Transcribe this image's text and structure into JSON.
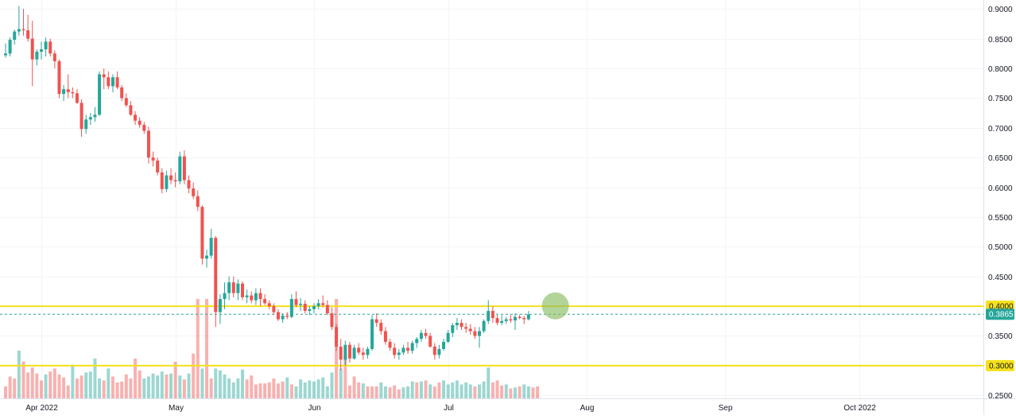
{
  "chart_data": {
    "type": "candlestick",
    "title": "",
    "xlabel": "",
    "ylabel": "",
    "ylim": [
      0.245,
      0.915
    ],
    "y_ticks": [
      "0.9000",
      "0.8500",
      "0.8000",
      "0.7500",
      "0.7000",
      "0.6500",
      "0.6000",
      "0.5500",
      "0.5000",
      "0.4500",
      "0.4000",
      "0.3500",
      "0.3000",
      "0.2500"
    ],
    "x_ticks": [
      {
        "label": "Apr 2022",
        "bar": 8
      },
      {
        "label": "May",
        "bar": 38
      },
      {
        "label": "Jun",
        "bar": 69
      },
      {
        "label": "Jul",
        "bar": 99
      },
      {
        "label": "Aug",
        "bar": 130
      },
      {
        "label": "Sep",
        "bar": 161
      },
      {
        "label": "Oct 2022",
        "bar": 191
      }
    ],
    "total_bar_slots": 220,
    "ohlc": [
      [
        0.822,
        0.842,
        0.818,
        0.825
      ],
      [
        0.825,
        0.852,
        0.82,
        0.848
      ],
      [
        0.848,
        0.865,
        0.84,
        0.862
      ],
      [
        0.862,
        0.905,
        0.855,
        0.866
      ],
      [
        0.866,
        0.9,
        0.855,
        0.864
      ],
      [
        0.864,
        0.89,
        0.845,
        0.85
      ],
      [
        0.85,
        0.88,
        0.77,
        0.815
      ],
      [
        0.815,
        0.832,
        0.805,
        0.828
      ],
      [
        0.828,
        0.845,
        0.815,
        0.832
      ],
      [
        0.832,
        0.852,
        0.82,
        0.845
      ],
      [
        0.845,
        0.85,
        0.82,
        0.825
      ],
      [
        0.825,
        0.83,
        0.8,
        0.812
      ],
      [
        0.812,
        0.815,
        0.75,
        0.757
      ],
      [
        0.757,
        0.772,
        0.745,
        0.765
      ],
      [
        0.765,
        0.79,
        0.75,
        0.76
      ],
      [
        0.76,
        0.768,
        0.75,
        0.758
      ],
      [
        0.758,
        0.765,
        0.74,
        0.742
      ],
      [
        0.742,
        0.748,
        0.685,
        0.698
      ],
      [
        0.698,
        0.722,
        0.69,
        0.714
      ],
      [
        0.714,
        0.725,
        0.705,
        0.718
      ],
      [
        0.718,
        0.735,
        0.71,
        0.722
      ],
      [
        0.722,
        0.795,
        0.72,
        0.79
      ],
      [
        0.79,
        0.8,
        0.765,
        0.785
      ],
      [
        0.785,
        0.795,
        0.765,
        0.77
      ],
      [
        0.77,
        0.79,
        0.76,
        0.785
      ],
      [
        0.785,
        0.795,
        0.765,
        0.768
      ],
      [
        0.768,
        0.772,
        0.745,
        0.75
      ],
      [
        0.75,
        0.758,
        0.735,
        0.738
      ],
      [
        0.738,
        0.745,
        0.72,
        0.722
      ],
      [
        0.722,
        0.728,
        0.705,
        0.712
      ],
      [
        0.712,
        0.718,
        0.7,
        0.705
      ],
      [
        0.705,
        0.71,
        0.69,
        0.695
      ],
      [
        0.695,
        0.702,
        0.64,
        0.65
      ],
      [
        0.65,
        0.66,
        0.635,
        0.645
      ],
      [
        0.645,
        0.65,
        0.62,
        0.625
      ],
      [
        0.625,
        0.632,
        0.59,
        0.597
      ],
      [
        0.597,
        0.628,
        0.592,
        0.62
      ],
      [
        0.62,
        0.632,
        0.605,
        0.612
      ],
      [
        0.612,
        0.625,
        0.6,
        0.61
      ],
      [
        0.61,
        0.66,
        0.605,
        0.652
      ],
      [
        0.652,
        0.662,
        0.605,
        0.612
      ],
      [
        0.612,
        0.62,
        0.59,
        0.598
      ],
      [
        0.598,
        0.608,
        0.58,
        0.585
      ],
      [
        0.585,
        0.595,
        0.56,
        0.567
      ],
      [
        0.567,
        0.57,
        0.47,
        0.48
      ],
      [
        0.48,
        0.495,
        0.465,
        0.485
      ],
      [
        0.485,
        0.53,
        0.48,
        0.515
      ],
      [
        0.515,
        0.518,
        0.365,
        0.39
      ],
      [
        0.39,
        0.42,
        0.37,
        0.412
      ],
      [
        0.412,
        0.44,
        0.395,
        0.422
      ],
      [
        0.422,
        0.45,
        0.41,
        0.44
      ],
      [
        0.44,
        0.45,
        0.415,
        0.422
      ],
      [
        0.422,
        0.445,
        0.41,
        0.438
      ],
      [
        0.438,
        0.442,
        0.41,
        0.415
      ],
      [
        0.415,
        0.428,
        0.405,
        0.418
      ],
      [
        0.418,
        0.425,
        0.405,
        0.41
      ],
      [
        0.41,
        0.43,
        0.402,
        0.422
      ],
      [
        0.422,
        0.43,
        0.4,
        0.412
      ],
      [
        0.412,
        0.42,
        0.402,
        0.405
      ],
      [
        0.405,
        0.41,
        0.395,
        0.4
      ],
      [
        0.4,
        0.405,
        0.385,
        0.39
      ],
      [
        0.39,
        0.395,
        0.375,
        0.378
      ],
      [
        0.378,
        0.388,
        0.372,
        0.384
      ],
      [
        0.384,
        0.39,
        0.378,
        0.382
      ],
      [
        0.382,
        0.42,
        0.38,
        0.412
      ],
      [
        0.412,
        0.425,
        0.398,
        0.402
      ],
      [
        0.402,
        0.414,
        0.392,
        0.404
      ],
      [
        0.404,
        0.41,
        0.388,
        0.392
      ],
      [
        0.392,
        0.4,
        0.385,
        0.395
      ],
      [
        0.395,
        0.405,
        0.388,
        0.4
      ],
      [
        0.4,
        0.412,
        0.395,
        0.405
      ],
      [
        0.405,
        0.418,
        0.398,
        0.402
      ],
      [
        0.402,
        0.41,
        0.385,
        0.388
      ],
      [
        0.388,
        0.398,
        0.36,
        0.365
      ],
      [
        0.365,
        0.37,
        0.325,
        0.332
      ],
      [
        0.332,
        0.345,
        0.292,
        0.31
      ],
      [
        0.31,
        0.342,
        0.3,
        0.335
      ],
      [
        0.335,
        0.34,
        0.305,
        0.312
      ],
      [
        0.312,
        0.335,
        0.31,
        0.33
      ],
      [
        0.33,
        0.338,
        0.318,
        0.322
      ],
      [
        0.322,
        0.33,
        0.31,
        0.318
      ],
      [
        0.318,
        0.332,
        0.312,
        0.328
      ],
      [
        0.328,
        0.385,
        0.325,
        0.378
      ],
      [
        0.378,
        0.388,
        0.365,
        0.372
      ],
      [
        0.372,
        0.378,
        0.352,
        0.358
      ],
      [
        0.358,
        0.365,
        0.335,
        0.34
      ],
      [
        0.34,
        0.345,
        0.325,
        0.33
      ],
      [
        0.33,
        0.338,
        0.312,
        0.318
      ],
      [
        0.318,
        0.328,
        0.31,
        0.322
      ],
      [
        0.322,
        0.335,
        0.318,
        0.33
      ],
      [
        0.33,
        0.34,
        0.32,
        0.325
      ],
      [
        0.325,
        0.342,
        0.32,
        0.338
      ],
      [
        0.338,
        0.348,
        0.33,
        0.345
      ],
      [
        0.345,
        0.36,
        0.34,
        0.355
      ],
      [
        0.355,
        0.362,
        0.345,
        0.35
      ],
      [
        0.35,
        0.355,
        0.33,
        0.332
      ],
      [
        0.332,
        0.338,
        0.31,
        0.318
      ],
      [
        0.318,
        0.335,
        0.312,
        0.328
      ],
      [
        0.328,
        0.345,
        0.325,
        0.34
      ],
      [
        0.34,
        0.36,
        0.338,
        0.355
      ],
      [
        0.355,
        0.372,
        0.348,
        0.368
      ],
      [
        0.368,
        0.38,
        0.36,
        0.372
      ],
      [
        0.372,
        0.378,
        0.36,
        0.365
      ],
      [
        0.365,
        0.372,
        0.355,
        0.362
      ],
      [
        0.362,
        0.37,
        0.352,
        0.358
      ],
      [
        0.358,
        0.365,
        0.345,
        0.35
      ],
      [
        0.35,
        0.365,
        0.33,
        0.358
      ],
      [
        0.358,
        0.378,
        0.355,
        0.375
      ],
      [
        0.375,
        0.41,
        0.37,
        0.392
      ],
      [
        0.392,
        0.4,
        0.372,
        0.38
      ],
      [
        0.38,
        0.385,
        0.368,
        0.372
      ],
      [
        0.372,
        0.385,
        0.368,
        0.375
      ],
      [
        0.375,
        0.382,
        0.37,
        0.378
      ],
      [
        0.378,
        0.385,
        0.372,
        0.376
      ],
      [
        0.376,
        0.388,
        0.36,
        0.382
      ],
      [
        0.382,
        0.386,
        0.378,
        0.38
      ],
      [
        0.38,
        0.384,
        0.37,
        0.378
      ],
      [
        0.378,
        0.392,
        0.376,
        0.386
      ]
    ],
    "volume": [
      [
        12,
        0
      ],
      [
        22,
        0
      ],
      [
        20,
        0
      ],
      [
        48,
        1
      ],
      [
        37,
        0
      ],
      [
        26,
        0
      ],
      [
        31,
        0
      ],
      [
        25,
        0
      ],
      [
        18,
        0
      ],
      [
        24,
        1
      ],
      [
        27,
        0
      ],
      [
        30,
        0
      ],
      [
        24,
        0
      ],
      [
        21,
        0
      ],
      [
        13,
        0
      ],
      [
        34,
        1
      ],
      [
        20,
        0
      ],
      [
        23,
        0
      ],
      [
        26,
        1
      ],
      [
        27,
        1
      ],
      [
        40,
        1
      ],
      [
        20,
        1
      ],
      [
        18,
        0
      ],
      [
        30,
        1
      ],
      [
        22,
        0
      ],
      [
        16,
        0
      ],
      [
        17,
        0
      ],
      [
        24,
        0
      ],
      [
        20,
        0
      ],
      [
        40,
        0
      ],
      [
        28,
        0
      ],
      [
        20,
        1
      ],
      [
        22,
        1
      ],
      [
        25,
        1
      ],
      [
        23,
        1
      ],
      [
        27,
        1
      ],
      [
        24,
        0
      ],
      [
        25,
        1
      ],
      [
        37,
        0
      ],
      [
        23,
        1
      ],
      [
        19,
        0
      ],
      [
        25,
        1
      ],
      [
        45,
        0
      ],
      [
        100,
        0
      ],
      [
        30,
        1
      ],
      [
        100,
        0
      ],
      [
        20,
        0
      ],
      [
        30,
        1
      ],
      [
        28,
        1
      ],
      [
        24,
        1
      ],
      [
        20,
        1
      ],
      [
        16,
        1
      ],
      [
        20,
        1
      ],
      [
        29,
        1
      ],
      [
        19,
        0
      ],
      [
        23,
        0
      ],
      [
        14,
        0
      ],
      [
        15,
        0
      ],
      [
        15,
        0
      ],
      [
        16,
        0
      ],
      [
        20,
        0
      ],
      [
        15,
        0
      ],
      [
        17,
        0
      ],
      [
        21,
        1
      ],
      [
        14,
        0
      ],
      [
        12,
        1
      ],
      [
        19,
        1
      ],
      [
        16,
        1
      ],
      [
        18,
        1
      ],
      [
        17,
        1
      ],
      [
        19,
        1
      ],
      [
        21,
        1
      ],
      [
        12,
        1
      ],
      [
        26,
        1
      ],
      [
        100,
        0
      ],
      [
        30,
        1
      ],
      [
        45,
        0
      ],
      [
        13,
        0
      ],
      [
        22,
        0
      ],
      [
        16,
        0
      ],
      [
        15,
        1
      ],
      [
        12,
        0
      ],
      [
        12,
        0
      ],
      [
        12,
        0
      ],
      [
        16,
        1
      ],
      [
        12,
        1
      ],
      [
        11,
        0
      ],
      [
        13,
        0
      ],
      [
        9,
        0
      ],
      [
        11,
        1
      ],
      [
        12,
        1
      ],
      [
        17,
        1
      ],
      [
        16,
        0
      ],
      [
        17,
        1
      ],
      [
        18,
        0
      ],
      [
        14,
        1
      ],
      [
        12,
        0
      ],
      [
        16,
        0
      ],
      [
        18,
        1
      ],
      [
        14,
        1
      ],
      [
        16,
        1
      ],
      [
        18,
        1
      ],
      [
        14,
        1
      ],
      [
        16,
        1
      ],
      [
        14,
        1
      ],
      [
        12,
        0
      ],
      [
        14,
        1
      ],
      [
        17,
        1
      ],
      [
        31,
        1
      ],
      [
        16,
        0
      ],
      [
        18,
        0
      ],
      [
        13,
        0
      ],
      [
        14,
        1
      ],
      [
        10,
        0
      ],
      [
        11,
        1
      ],
      [
        12,
        0
      ],
      [
        14,
        1
      ],
      [
        12,
        1
      ],
      [
        11,
        0
      ],
      [
        12,
        0
      ]
    ],
    "horizontal_lines": [
      {
        "value": 0.4,
        "label": "0.4000",
        "color": "#f5e11a",
        "label_color": "#f5e11a",
        "text_color": "#131722"
      },
      {
        "value": 0.3,
        "label": "0.3000",
        "color": "#f5e11a",
        "label_color": "#f5e11a",
        "text_color": "#131722"
      }
    ],
    "last_price": {
      "value": 0.3865,
      "label": "0.3865",
      "color": "#26a69a"
    },
    "marker": {
      "bar": 123,
      "value": 0.4005,
      "color": "#8bbd62"
    },
    "colors": {
      "up": "#26a69a",
      "down": "#ef5350",
      "vol_up": "#26a69a",
      "vol_down": "#ef5350"
    }
  }
}
